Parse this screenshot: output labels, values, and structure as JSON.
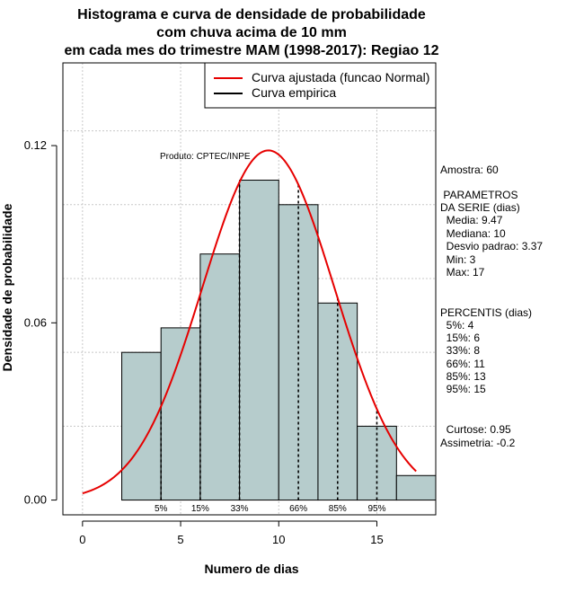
{
  "chart_data": {
    "type": "bar",
    "title_lines": [
      "Histograma e curva de densidade de probabilidade",
      "com chuva acima de 10 mm",
      "em cada mes do trimestre MAM (1998-2017): Regiao 12"
    ],
    "xlabel": "Numero de dias",
    "ylabel": "Densidade de probabilidade",
    "xlim": [
      -1,
      18
    ],
    "ylim": [
      -0.005,
      0.148
    ],
    "x_ticks": [
      0,
      5,
      10,
      15
    ],
    "x_tick_labels": [
      "0",
      "5",
      "10",
      "15"
    ],
    "y_ticks": [
      0.0,
      0.06,
      0.12
    ],
    "y_tick_labels": [
      "0.00",
      "0.06",
      "0.12"
    ],
    "grid": true,
    "bins": [
      {
        "x0": 2,
        "x1": 4,
        "density": 0.05
      },
      {
        "x0": 4,
        "x1": 6,
        "density": 0.0583
      },
      {
        "x0": 6,
        "x1": 8,
        "density": 0.0833
      },
      {
        "x0": 8,
        "x1": 10,
        "density": 0.1083
      },
      {
        "x0": 10,
        "x1": 12,
        "density": 0.1
      },
      {
        "x0": 12,
        "x1": 14,
        "density": 0.0667
      },
      {
        "x0": 14,
        "x1": 16,
        "density": 0.025
      },
      {
        "x0": 16,
        "x1": 18,
        "density": 0.0083
      }
    ],
    "fitted_curve": {
      "name": "Curva ajustada (funcao Normal)",
      "color": "#e60000",
      "mean": 9.47,
      "sd": 3.37,
      "x_range": [
        0,
        17
      ]
    },
    "empirical_curve": {
      "name": "Curva empirica",
      "color": "#000000"
    },
    "percentile_lines": [
      {
        "label": "5%",
        "x": 4
      },
      {
        "label": "15%",
        "x": 6
      },
      {
        "label": "33%",
        "x": 8
      },
      {
        "label": "66%",
        "x": 11
      },
      {
        "label": "85%",
        "x": 13
      },
      {
        "label": "95%",
        "x": 15
      }
    ],
    "legend_position": "top-right",
    "annotation": "Produto: CPTEC/INPE",
    "bar_color": "#b6cccc"
  },
  "stats_panel": {
    "amostra": "Amostra: 60",
    "parametros_title": " PARAMETROS",
    "parametros_subtitle": "DA SERIE (dias)",
    "media": "  Media: 9.47",
    "mediana": "  Mediana: 10",
    "desvio": "  Desvio padrao: 3.37",
    "min": "  Min: 3",
    "max": "  Max: 17",
    "percentis_title": "PERCENTIS (dias)",
    "p5": "  5%: 4",
    "p15": "  15%: 6",
    "p33": "  33%: 8",
    "p66": "  66%: 11",
    "p85": "  85%: 13",
    "p95": "  95%: 15",
    "curtose": "  Curtose: 0.95",
    "assimetria": "Assimetria: -0.2"
  }
}
